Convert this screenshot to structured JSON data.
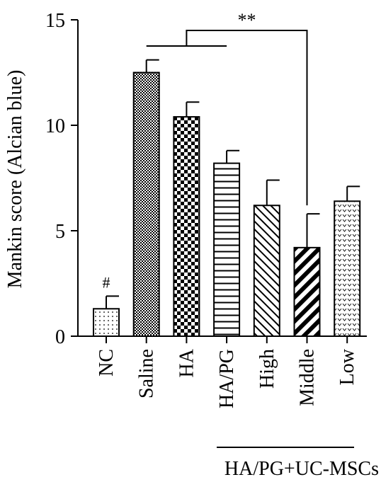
{
  "chart_data": {
    "type": "bar",
    "title": "",
    "ylabel": "Mankin score (Alcian blue)",
    "xlabel": "",
    "ylim": [
      0,
      15
    ],
    "yticks": [
      0,
      5,
      10,
      15
    ],
    "grid": false,
    "categories": [
      "NC",
      "Saline",
      "HA",
      "HA/PG",
      "High",
      "Middle",
      "Low"
    ],
    "values": [
      1.3,
      12.5,
      10.4,
      8.2,
      6.2,
      4.2,
      6.4
    ],
    "errors": [
      0.6,
      0.6,
      0.7,
      0.6,
      1.2,
      1.6,
      0.7
    ],
    "patterns": [
      "dots",
      "checker-fine",
      "checker-coarse",
      "horizontal-lines",
      "diagonal-thin",
      "diagonal-thick",
      "v-marks"
    ],
    "group_label": "HA/PG+UC-MSCs",
    "group_members": [
      "High",
      "Middle",
      "Low"
    ],
    "annotations": [
      {
        "text": "#",
        "category": "NC"
      },
      {
        "text": "**",
        "from": [
          "Saline",
          "HA",
          "HA/PG"
        ],
        "to": "Middle"
      }
    ]
  }
}
